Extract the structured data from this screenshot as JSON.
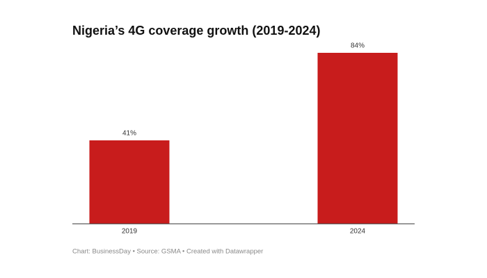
{
  "chart_data": {
    "type": "bar",
    "title": "Nigeria’s 4G coverage growth (2019-2024)",
    "categories": [
      "2019",
      "2024"
    ],
    "values": [
      41,
      84
    ],
    "value_labels": [
      "41%",
      "84%"
    ],
    "color": "#c81c1c",
    "source": "Chart: BusinessDay • Source: GSMA • Created with Datawrapper"
  }
}
